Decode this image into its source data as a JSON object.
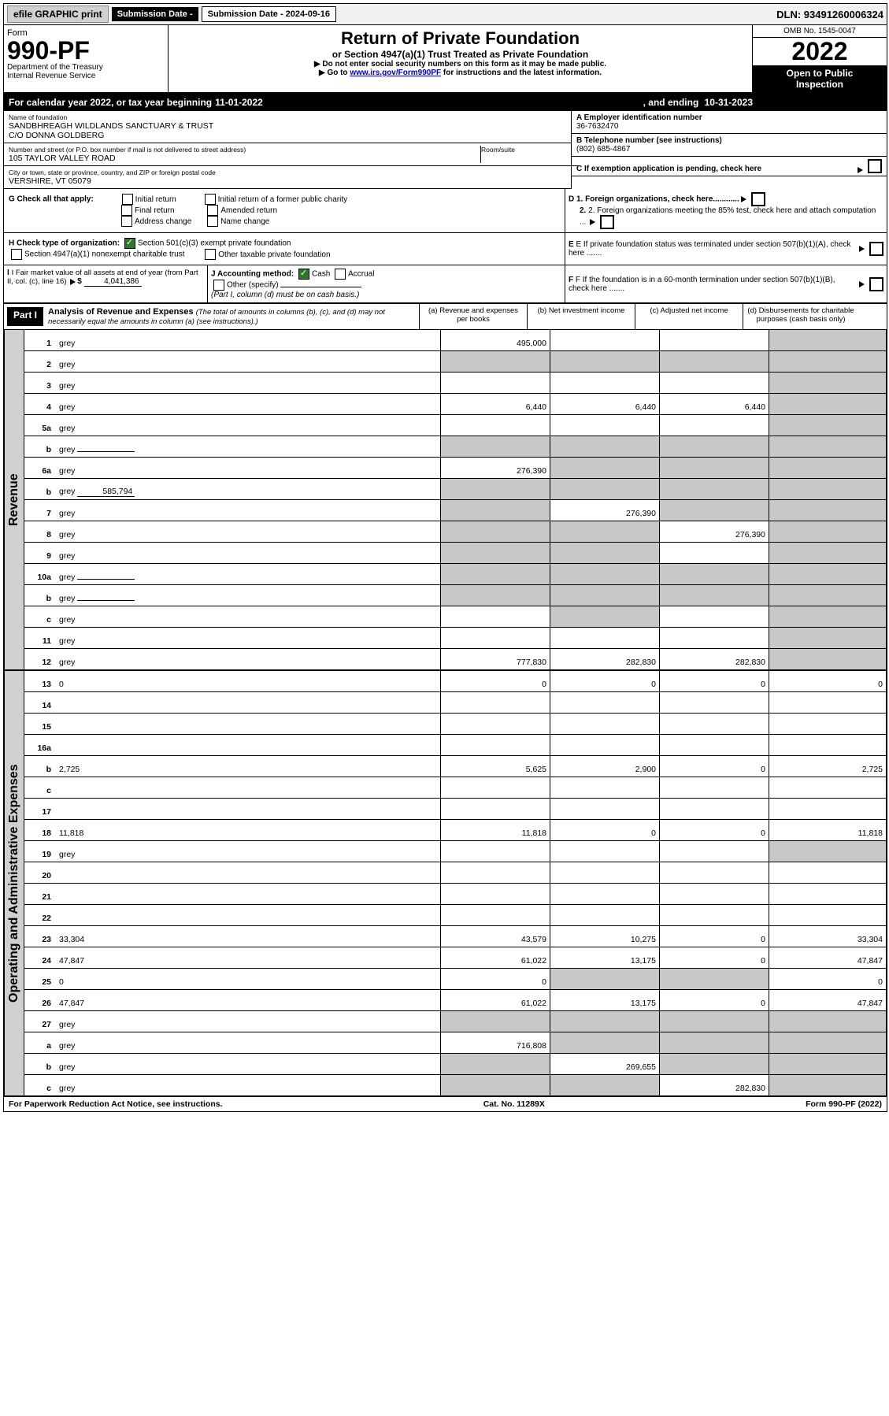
{
  "topbar": {
    "efile_btn": "efile GRAPHIC print",
    "submission_label": "Submission Date - 2024-09-16",
    "dln": "DLN: 93491260006324"
  },
  "header": {
    "form_label": "Form",
    "form_number": "990-PF",
    "dept": "Department of the Treasury",
    "irs": "Internal Revenue Service",
    "title": "Return of Private Foundation",
    "subtitle": "or Section 4947(a)(1) Trust Treated as Private Foundation",
    "note1": "▶ Do not enter social security numbers on this form as it may be made public.",
    "note2_pre": "▶ Go to ",
    "note2_link": "www.irs.gov/Form990PF",
    "note2_post": " for instructions and the latest information.",
    "omb": "OMB No. 1545-0047",
    "year": "2022",
    "open1": "Open to Public",
    "open2": "Inspection"
  },
  "calendar": {
    "prefix": "For calendar year 2022, or tax year beginning ",
    "begin": "11-01-2022",
    "mid": ", and ending ",
    "end": "10-31-2023"
  },
  "entity": {
    "name_label": "Name of foundation",
    "name1": "SANDBHREAGH WILDLANDS SANCTUARY & TRUST",
    "name2": "C/O DONNA GOLDBERG",
    "addr_label": "Number and street (or P.O. box number if mail is not delivered to street address)",
    "addr": "105 TAYLOR VALLEY ROAD",
    "room_label": "Room/suite",
    "room": "",
    "city_label": "City or town, state or province, country, and ZIP or foreign postal code",
    "city": "VERSHIRE, VT  05079"
  },
  "right_info": {
    "a_label": "A Employer identification number",
    "a_val": "36-7632470",
    "b_label": "B Telephone number (see instructions)",
    "b_val": "(802) 685-4867",
    "c_label": "C If exemption application is pending, check here",
    "d1": "D 1. Foreign organizations, check here............",
    "d2": "2. Foreign organizations meeting the 85% test, check here and attach computation ...",
    "e": "E  If private foundation status was terminated under section 507(b)(1)(A), check here .......",
    "f": "F  If the foundation is in a 60-month termination under section 507(b)(1)(B), check here .......",
    "g_label": "G Check all that apply:",
    "g_opts": [
      "Initial return",
      "Initial return of a former public charity",
      "Final return",
      "Amended return",
      "Address change",
      "Name change"
    ],
    "h_label": "H Check type of organization:",
    "h1": "Section 501(c)(3) exempt private foundation",
    "h2": "Section 4947(a)(1) nonexempt charitable trust",
    "h3": "Other taxable private foundation",
    "i_label": "I Fair market value of all assets at end of year (from Part II, col. (c), line 16)",
    "i_val": "4,041,386",
    "j_label": "J Accounting method:",
    "j_cash": "Cash",
    "j_accrual": "Accrual",
    "j_other": "Other (specify)",
    "j_note": "(Part I, column (d) must be on cash basis.)"
  },
  "part1": {
    "header": "Part I",
    "title": "Analysis of Revenue and Expenses",
    "note": "(The total of amounts in columns (b), (c), and (d) may not necessarily equal the amounts in column (a) (see instructions).)",
    "col_a": "(a)  Revenue and expenses per books",
    "col_b": "(b)  Net investment income",
    "col_c": "(c)  Adjusted net income",
    "col_d": "(d)  Disbursements for charitable purposes (cash basis only)",
    "side_rev": "Revenue",
    "side_exp": "Operating and Administrative Expenses"
  },
  "rows_rev": [
    {
      "n": "1",
      "d": "grey",
      "a": "495,000",
      "b": "",
      "c": ""
    },
    {
      "n": "2",
      "d": "grey",
      "a": "grey",
      "b": "grey",
      "c": "grey"
    },
    {
      "n": "3",
      "d": "grey",
      "a": "",
      "b": "",
      "c": ""
    },
    {
      "n": "4",
      "d": "grey",
      "a": "6,440",
      "b": "6,440",
      "c": "6,440"
    },
    {
      "n": "5a",
      "d": "grey",
      "a": "",
      "b": "",
      "c": ""
    },
    {
      "n": "b",
      "d": "grey",
      "a": "grey",
      "b": "grey",
      "c": "grey",
      "inline": ""
    },
    {
      "n": "6a",
      "d": "grey",
      "a": "276,390",
      "b": "grey",
      "c": "grey"
    },
    {
      "n": "b",
      "d": "grey",
      "a": "grey",
      "b": "grey",
      "c": "grey",
      "inline": "585,794"
    },
    {
      "n": "7",
      "d": "grey",
      "a": "grey",
      "b": "276,390",
      "c": "grey"
    },
    {
      "n": "8",
      "d": "grey",
      "a": "grey",
      "b": "grey",
      "c": "276,390"
    },
    {
      "n": "9",
      "d": "grey",
      "a": "grey",
      "b": "grey",
      "c": ""
    },
    {
      "n": "10a",
      "d": "grey",
      "a": "grey",
      "b": "grey",
      "c": "grey",
      "inline": ""
    },
    {
      "n": "b",
      "d": "grey",
      "a": "grey",
      "b": "grey",
      "c": "grey",
      "inline": ""
    },
    {
      "n": "c",
      "d": "grey",
      "a": "",
      "b": "grey",
      "c": ""
    },
    {
      "n": "11",
      "d": "grey",
      "a": "",
      "b": "",
      "c": ""
    },
    {
      "n": "12",
      "d": "grey",
      "a": "777,830",
      "b": "282,830",
      "c": "282,830"
    }
  ],
  "rows_exp": [
    {
      "n": "13",
      "d": "0",
      "a": "0",
      "b": "0",
      "c": "0"
    },
    {
      "n": "14",
      "d": "",
      "a": "",
      "b": "",
      "c": ""
    },
    {
      "n": "15",
      "d": "",
      "a": "",
      "b": "",
      "c": ""
    },
    {
      "n": "16a",
      "d": "",
      "a": "",
      "b": "",
      "c": ""
    },
    {
      "n": "b",
      "d": "2,725",
      "a": "5,625",
      "b": "2,900",
      "c": "0"
    },
    {
      "n": "c",
      "d": "",
      "a": "",
      "b": "",
      "c": ""
    },
    {
      "n": "17",
      "d": "",
      "a": "",
      "b": "",
      "c": ""
    },
    {
      "n": "18",
      "d": "11,818",
      "a": "11,818",
      "b": "0",
      "c": "0"
    },
    {
      "n": "19",
      "d": "grey",
      "a": "",
      "b": "",
      "c": ""
    },
    {
      "n": "20",
      "d": "",
      "a": "",
      "b": "",
      "c": ""
    },
    {
      "n": "21",
      "d": "",
      "a": "",
      "b": "",
      "c": ""
    },
    {
      "n": "22",
      "d": "",
      "a": "",
      "b": "",
      "c": ""
    },
    {
      "n": "23",
      "d": "33,304",
      "a": "43,579",
      "b": "10,275",
      "c": "0"
    },
    {
      "n": "24",
      "d": "47,847",
      "a": "61,022",
      "b": "13,175",
      "c": "0"
    },
    {
      "n": "25",
      "d": "0",
      "a": "0",
      "b": "grey",
      "c": "grey"
    },
    {
      "n": "26",
      "d": "47,847",
      "a": "61,022",
      "b": "13,175",
      "c": "0"
    },
    {
      "n": "27",
      "d": "grey",
      "a": "grey",
      "b": "grey",
      "c": "grey"
    },
    {
      "n": "a",
      "d": "grey",
      "a": "716,808",
      "b": "grey",
      "c": "grey"
    },
    {
      "n": "b",
      "d": "grey",
      "a": "grey",
      "b": "269,655",
      "c": "grey"
    },
    {
      "n": "c",
      "d": "grey",
      "a": "grey",
      "b": "grey",
      "c": "282,830"
    }
  ],
  "footer": {
    "left": "For Paperwork Reduction Act Notice, see instructions.",
    "mid": "Cat. No. 11289X",
    "right": "Form 990-PF (2022)"
  }
}
